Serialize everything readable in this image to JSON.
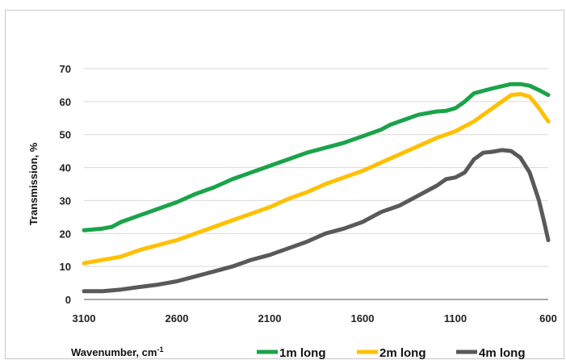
{
  "chart_data": {
    "type": "line",
    "title": "",
    "xlabel": "Wavenumber, cm",
    "xlabel_superscript": "-1",
    "ylabel": "Transmission, %",
    "xlim": [
      3100,
      600
    ],
    "x_reversed": true,
    "ylim": [
      0,
      70
    ],
    "xticks": [
      "3100",
      "2600",
      "2100",
      "1600",
      "1100",
      "600"
    ],
    "yticks": [
      "0",
      "10",
      "20",
      "30",
      "40",
      "50",
      "60",
      "70"
    ],
    "grid": "horizontal",
    "legend_position": "bottom",
    "series": [
      {
        "name": "1m long",
        "color": "#1aa34a",
        "x": [
          3100,
          3000,
          2950,
          2900,
          2800,
          2700,
          2600,
          2500,
          2400,
          2300,
          2200,
          2100,
          2000,
          1900,
          1800,
          1700,
          1600,
          1500,
          1450,
          1400,
          1300,
          1200,
          1150,
          1100,
          1050,
          1000,
          900,
          800,
          750,
          700,
          650,
          600
        ],
        "y": [
          21,
          21.5,
          22,
          23.5,
          25.5,
          27.5,
          29.5,
          32,
          34,
          36.5,
          38.5,
          40.5,
          42.5,
          44.5,
          46,
          47.5,
          49.5,
          51.5,
          53,
          54,
          56,
          57,
          57.2,
          58,
          60,
          62.5,
          64,
          65.3,
          65.3,
          64.8,
          63.5,
          62
        ]
      },
      {
        "name": "2m long",
        "color": "#ffc000",
        "x": [
          3100,
          3000,
          2900,
          2800,
          2700,
          2600,
          2500,
          2400,
          2300,
          2200,
          2100,
          2000,
          1900,
          1800,
          1700,
          1600,
          1500,
          1400,
          1300,
          1200,
          1100,
          1000,
          900,
          800,
          750,
          700,
          650,
          600
        ],
        "y": [
          11,
          12,
          13,
          15,
          16.5,
          18,
          20,
          22,
          24,
          26,
          28,
          30.5,
          32.5,
          35,
          37,
          39,
          41.5,
          44,
          46.5,
          49,
          51,
          54,
          58,
          62,
          62.3,
          61.5,
          58,
          54
        ]
      },
      {
        "name": "4m long",
        "color": "#595959",
        "x": [
          3100,
          3000,
          2900,
          2800,
          2700,
          2600,
          2500,
          2400,
          2300,
          2200,
          2100,
          2000,
          1900,
          1800,
          1700,
          1600,
          1500,
          1400,
          1300,
          1200,
          1150,
          1100,
          1050,
          1000,
          950,
          900,
          850,
          800,
          750,
          700,
          650,
          620,
          600
        ],
        "y": [
          2.5,
          2.5,
          3,
          3.8,
          4.5,
          5.5,
          7,
          8.5,
          10,
          12,
          13.5,
          15.5,
          17.5,
          20,
          21.5,
          23.5,
          26.5,
          28.5,
          31.5,
          34.5,
          36.5,
          37,
          38.5,
          42.5,
          44.5,
          44.8,
          45.3,
          45,
          43,
          38.5,
          30,
          23,
          18
        ]
      }
    ]
  }
}
